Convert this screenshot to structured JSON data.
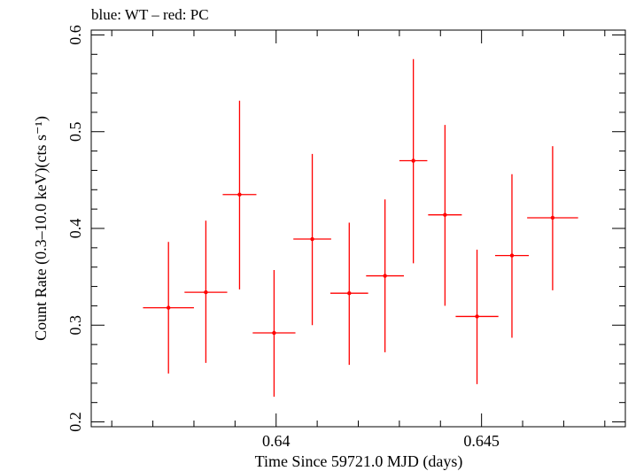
{
  "chart_data": {
    "type": "scatter",
    "title": "blue: WT – red: PC",
    "xlabel": "Time Since 59721.0 MJD (days)",
    "ylabel": "Count Rate (0.3–10.0 keV)(cts s⁻¹)",
    "xlim": [
      0.6355,
      0.6485
    ],
    "ylim": [
      0.195,
      0.605
    ],
    "x_ticks_major": [
      0.64,
      0.645
    ],
    "x_tick_labels": [
      "0.64",
      "0.645"
    ],
    "y_ticks_major": [
      0.2,
      0.3,
      0.4,
      0.5,
      0.6
    ],
    "y_tick_labels": [
      "0.2",
      "0.3",
      "0.4",
      "0.5",
      "0.6"
    ],
    "grid": false,
    "series": [
      {
        "color": "#ff0000",
        "points": [
          {
            "x": 0.63738,
            "y": 0.318,
            "xerr": 0.00062,
            "ylo": 0.25,
            "yhi": 0.386
          },
          {
            "x": 0.63829,
            "y": 0.334,
            "xerr": 0.00052,
            "ylo": 0.261,
            "yhi": 0.408
          },
          {
            "x": 0.63911,
            "y": 0.435,
            "xerr": 0.00041,
            "ylo": 0.337,
            "yhi": 0.532
          },
          {
            "x": 0.63995,
            "y": 0.292,
            "xerr": 0.00052,
            "ylo": 0.226,
            "yhi": 0.357
          },
          {
            "x": 0.64088,
            "y": 0.389,
            "xerr": 0.00046,
            "ylo": 0.3,
            "yhi": 0.477
          },
          {
            "x": 0.64178,
            "y": 0.333,
            "xerr": 0.00046,
            "ylo": 0.259,
            "yhi": 0.406
          },
          {
            "x": 0.64265,
            "y": 0.351,
            "xerr": 0.00046,
            "ylo": 0.272,
            "yhi": 0.43
          },
          {
            "x": 0.64334,
            "y": 0.47,
            "xerr": 0.00034,
            "ylo": 0.364,
            "yhi": 0.575
          },
          {
            "x": 0.64411,
            "y": 0.414,
            "xerr": 0.00041,
            "ylo": 0.32,
            "yhi": 0.507
          },
          {
            "x": 0.64489,
            "y": 0.309,
            "xerr": 0.00052,
            "ylo": 0.239,
            "yhi": 0.378
          },
          {
            "x": 0.64574,
            "y": 0.372,
            "xerr": 0.00041,
            "ylo": 0.287,
            "yhi": 0.456
          },
          {
            "x": 0.64673,
            "y": 0.411,
            "xerr": 0.00062,
            "ylo": 0.336,
            "yhi": 0.485
          }
        ]
      }
    ]
  }
}
